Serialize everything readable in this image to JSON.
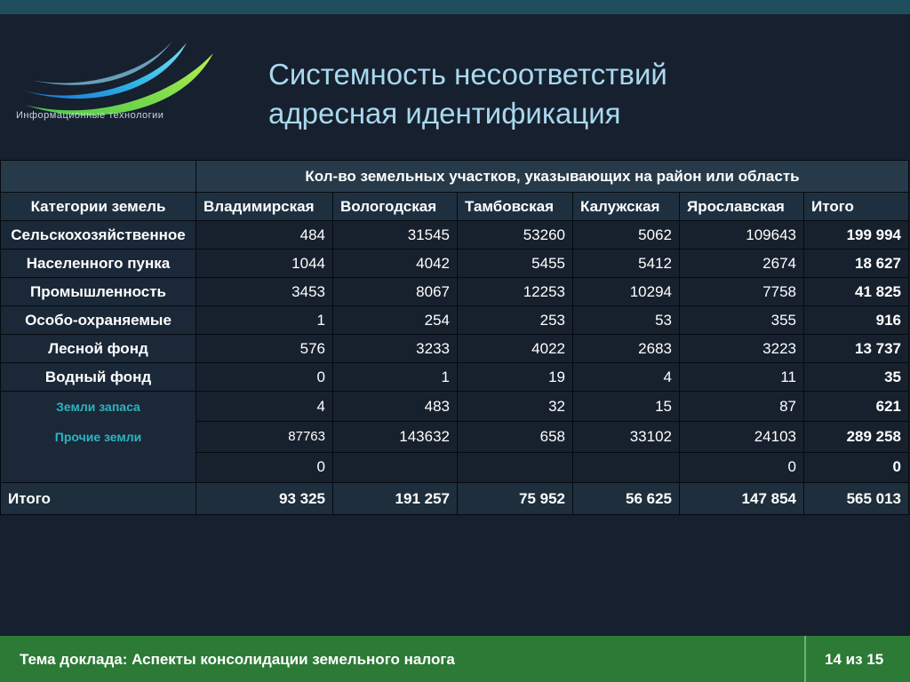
{
  "logo": {
    "text": "Информационные технологии",
    "icon": "swoosh-logo-icon",
    "colors": [
      "#8fe04a",
      "#32b8e6",
      "#1a6fd0"
    ]
  },
  "title": {
    "line1": "Системность несоответствий",
    "line2": "адресная идентификация"
  },
  "table": {
    "group_header": "Кол-во земельных участков, указывающих на район или область",
    "category_header": "Категории земель",
    "columns": [
      "Владимирская",
      "Вологодская",
      "Тамбовская",
      "Калужская",
      "Ярославская",
      "Итого"
    ],
    "rows": [
      {
        "category": "Сельскохозяйственное",
        "values": [
          "484",
          "31545",
          "53260",
          "5062",
          "109643"
        ],
        "total": "199 994"
      },
      {
        "category": "Населенного пунка",
        "values": [
          "1044",
          "4042",
          "5455",
          "5412",
          "2674"
        ],
        "total": "18 627"
      },
      {
        "category": "Промышленность",
        "values": [
          "3453",
          "8067",
          "12253",
          "10294",
          "7758"
        ],
        "total": "41 825"
      },
      {
        "category": "Особо-охраняемые",
        "values": [
          "1",
          "254",
          "253",
          "53",
          "355"
        ],
        "total": "916"
      },
      {
        "category": "Лесной фонд",
        "values": [
          "576",
          "3233",
          "4022",
          "2683",
          "3223"
        ],
        "total": "13 737"
      },
      {
        "category": "Водный фонд",
        "values": [
          "0",
          "1",
          "19",
          "4",
          "11"
        ],
        "total": "35"
      },
      {
        "category": "Земли запаса",
        "values": [
          "4",
          "483",
          "32",
          "15",
          "87"
        ],
        "total": "621"
      },
      {
        "category": "Прочие земли",
        "values": [
          "87763",
          "143632",
          "658",
          "33102",
          "24103"
        ],
        "total": "289 258"
      },
      {
        "category": "",
        "values": [
          "0",
          "",
          "",
          "",
          "0"
        ],
        "total": "0"
      }
    ],
    "total_row": {
      "label": "Итого",
      "values": [
        "93 325",
        "191 257",
        "75 952",
        "56 625",
        "147 854",
        "565 013"
      ]
    }
  },
  "footer": {
    "topic": "Тема доклада: Аспекты консолидации земельного налога",
    "page": "14 из 15"
  }
}
